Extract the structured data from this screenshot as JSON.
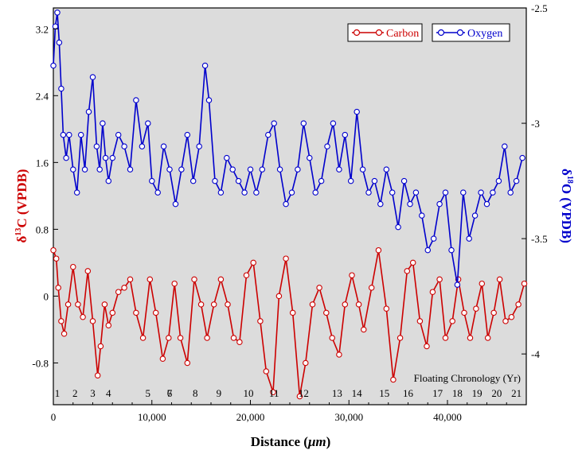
{
  "chart_data": {
    "type": "line",
    "x_label_prefix": "Distance (",
    "x_label_unit": "μm",
    "x_label_suffix": ")",
    "y_left_label_prefix": "δ",
    "y_left_label_sup": "13",
    "y_left_label_suffix": "C (VPDB)",
    "y_right_label_prefix": "δ",
    "y_right_label_sup": "18",
    "y_right_label_suffix": "O (VPDB)",
    "xlim": [
      0,
      48000
    ],
    "ylim_left": [
      -1.3,
      3.45
    ],
    "ylim_right": [
      -4.22,
      -2.5
    ],
    "x_ticks": [
      {
        "value": 0,
        "label": "0"
      },
      {
        "value": 10000,
        "label": "10,000"
      },
      {
        "value": 20000,
        "label": "20,000"
      },
      {
        "value": 30000,
        "label": "30,000"
      },
      {
        "value": 40000,
        "label": "40,000"
      }
    ],
    "y_left_ticks": [
      {
        "value": -0.8,
        "label": "-0.8"
      },
      {
        "value": 0,
        "label": "0"
      },
      {
        "value": 0.8,
        "label": "0.8"
      },
      {
        "value": 1.6,
        "label": "1.6"
      },
      {
        "value": 2.4,
        "label": "2.4"
      },
      {
        "value": 3.2,
        "label": "3.2"
      }
    ],
    "y_right_ticks": [
      {
        "value": -2.5,
        "label": "-2.5"
      },
      {
        "value": -3,
        "label": "-3"
      },
      {
        "value": -3.5,
        "label": "-3.5"
      },
      {
        "value": -4,
        "label": "-4"
      }
    ],
    "chronology_title": "Floating Chronology (Yr)",
    "chronology": [
      {
        "label": "1",
        "x": 400
      },
      {
        "label": "2",
        "x": 2200
      },
      {
        "label": "3",
        "x": 4000
      },
      {
        "label": "4",
        "x": 5600
      },
      {
        "label": "5",
        "x": 9600
      },
      {
        "label": "6",
        "x": 11800
      },
      {
        "label": "7",
        "x": 11800
      },
      {
        "label": "8",
        "x": 14400
      },
      {
        "label": "9",
        "x": 16800
      },
      {
        "label": "10",
        "x": 19800
      },
      {
        "label": "11",
        "x": 22400
      },
      {
        "label": "12",
        "x": 25400
      },
      {
        "label": "13",
        "x": 28800
      },
      {
        "label": "14",
        "x": 30800
      },
      {
        "label": "15",
        "x": 33600
      },
      {
        "label": "16",
        "x": 36000
      },
      {
        "label": "17",
        "x": 39000
      },
      {
        "label": "18",
        "x": 41000
      },
      {
        "label": "19",
        "x": 43000
      },
      {
        "label": "20",
        "x": 45000
      },
      {
        "label": "21",
        "x": 47000
      }
    ],
    "legend_position": "top-right",
    "series": [
      {
        "name": "Carbon",
        "axis": "left",
        "color": "#cc0000",
        "x": [
          0,
          300,
          500,
          800,
          1100,
          1500,
          2000,
          2500,
          3000,
          3500,
          4000,
          4500,
          4800,
          5200,
          5600,
          6000,
          6600,
          7200,
          7800,
          8400,
          9100,
          9800,
          10400,
          11100,
          11700,
          12300,
          12900,
          13600,
          14300,
          15000,
          15600,
          16300,
          17000,
          17700,
          18300,
          18900,
          19600,
          20300,
          21000,
          21600,
          22300,
          22900,
          23600,
          24300,
          25000,
          25600,
          26300,
          27000,
          27700,
          28300,
          29000,
          29600,
          30300,
          31000,
          31500,
          32300,
          33000,
          33800,
          34500,
          35200,
          35900,
          36500,
          37200,
          37900,
          38500,
          39200,
          39800,
          40500,
          41100,
          41700,
          42300,
          42900,
          43500,
          44100,
          44700,
          45300,
          45900,
          46500,
          47200,
          47800
        ],
        "values": [
          0.55,
          0.45,
          0.1,
          -0.3,
          -0.45,
          -0.1,
          0.35,
          -0.1,
          -0.25,
          0.3,
          -0.3,
          -0.95,
          -0.6,
          -0.1,
          -0.35,
          -0.2,
          0.05,
          0.1,
          0.2,
          -0.2,
          -0.5,
          0.2,
          -0.2,
          -0.75,
          -0.5,
          0.15,
          -0.5,
          -0.8,
          0.2,
          -0.1,
          -0.5,
          -0.1,
          0.2,
          -0.1,
          -0.5,
          -0.55,
          0.25,
          0.4,
          -0.3,
          -0.9,
          -1.15,
          0.0,
          0.45,
          -0.2,
          -1.2,
          -0.8,
          -0.1,
          0.1,
          -0.2,
          -0.5,
          -0.7,
          -0.1,
          0.25,
          -0.1,
          -0.4,
          0.1,
          0.55,
          -0.15,
          -1.0,
          -0.5,
          0.3,
          0.4,
          -0.3,
          -0.6,
          0.05,
          0.2,
          -0.5,
          -0.3,
          0.2,
          -0.2,
          -0.5,
          -0.15,
          0.15,
          -0.5,
          -0.2,
          0.2,
          -0.3,
          -0.25,
          -0.1,
          0.15
        ],
        "note": "values approximate"
      },
      {
        "name": "Oxygen",
        "axis": "right",
        "color": "#0000cc",
        "x": [
          0,
          200,
          400,
          600,
          800,
          1000,
          1300,
          1600,
          2000,
          2400,
          2800,
          3200,
          3600,
          4000,
          4400,
          4700,
          5000,
          5300,
          5600,
          6000,
          6600,
          7200,
          7800,
          8400,
          9000,
          9600,
          10000,
          10600,
          11200,
          11800,
          12400,
          13000,
          13600,
          14200,
          14800,
          15400,
          15800,
          16400,
          17000,
          17600,
          18200,
          18800,
          19400,
          20000,
          20600,
          21200,
          21800,
          22400,
          23000,
          23600,
          24200,
          24800,
          25400,
          26000,
          26600,
          27200,
          27800,
          28400,
          29000,
          29600,
          30200,
          30800,
          31400,
          32000,
          32600,
          33200,
          33800,
          34400,
          35000,
          35600,
          36200,
          36800,
          37400,
          38000,
          38600,
          39200,
          39800,
          40400,
          41000,
          41600,
          42200,
          42800,
          43400,
          44000,
          44600,
          45200,
          45800,
          46400,
          47000,
          47600
        ],
        "values": [
          -2.75,
          -2.58,
          -2.52,
          -2.65,
          -2.85,
          -3.05,
          -3.15,
          -3.05,
          -3.2,
          -3.3,
          -3.05,
          -3.2,
          -2.95,
          -2.8,
          -3.1,
          -3.2,
          -3.0,
          -3.15,
          -3.25,
          -3.15,
          -3.05,
          -3.1,
          -3.2,
          -2.9,
          -3.1,
          -3.0,
          -3.25,
          -3.3,
          -3.1,
          -3.2,
          -3.35,
          -3.2,
          -3.05,
          -3.25,
          -3.1,
          -2.75,
          -2.9,
          -3.25,
          -3.3,
          -3.15,
          -3.2,
          -3.25,
          -3.3,
          -3.2,
          -3.3,
          -3.2,
          -3.05,
          -3.0,
          -3.2,
          -3.35,
          -3.3,
          -3.2,
          -3.0,
          -3.15,
          -3.3,
          -3.25,
          -3.1,
          -3.0,
          -3.2,
          -3.05,
          -3.25,
          -2.95,
          -3.2,
          -3.3,
          -3.25,
          -3.35,
          -3.2,
          -3.3,
          -3.45,
          -3.25,
          -3.35,
          -3.3,
          -3.4,
          -3.55,
          -3.5,
          -3.35,
          -3.3,
          -3.55,
          -3.7,
          -3.3,
          -3.5,
          -3.4,
          -3.3,
          -3.35,
          -3.3,
          -3.25,
          -3.1,
          -3.3,
          -3.25,
          -3.15
        ],
        "note": "values approximate"
      }
    ]
  }
}
